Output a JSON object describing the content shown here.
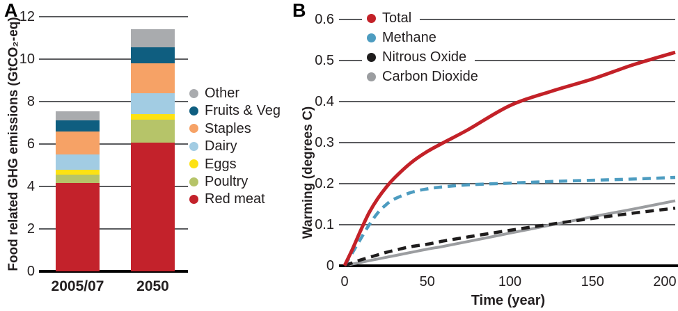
{
  "panels": {
    "a_label": "A",
    "b_label": "B"
  },
  "text_color": "#231f20",
  "grid_color": "#5a5b5e",
  "chart_data": [
    {
      "type": "bar",
      "panel": "A",
      "stacked": true,
      "ylabel": "Food related GHG emissions (GtCO₂-eq)",
      "categories": [
        "2005/07",
        "2050"
      ],
      "ylim": [
        0,
        12
      ],
      "yticks": [
        0,
        2,
        4,
        6,
        8,
        10,
        12
      ],
      "grid": true,
      "series": [
        {
          "name": "Red meat",
          "color": "#c3222b",
          "values": [
            4.15,
            6.05
          ]
        },
        {
          "name": "Poultry",
          "color": "#b6c469",
          "values": [
            0.4,
            1.1
          ]
        },
        {
          "name": "Eggs",
          "color": "#fde213",
          "values": [
            0.25,
            0.25
          ]
        },
        {
          "name": "Dairy",
          "color": "#a2cce3",
          "values": [
            0.7,
            1.0
          ]
        },
        {
          "name": "Staples",
          "color": "#f6a266",
          "values": [
            1.1,
            1.4
          ]
        },
        {
          "name": "Fruits & Veg",
          "color": "#0f5e80",
          "values": [
            0.5,
            0.75
          ]
        },
        {
          "name": "Other",
          "color": "#a9abae",
          "values": [
            0.45,
            0.85
          ]
        }
      ],
      "bar_totals": [
        7.55,
        11.4
      ],
      "legend_top_to_bottom": [
        "Other",
        "Fruits & Veg",
        "Staples",
        "Dairy",
        "Eggs",
        "Poultry",
        "Red meat"
      ],
      "legend_position": "right"
    },
    {
      "type": "line",
      "panel": "B",
      "xlabel": "Time (year)",
      "ylabel": "Warming (degrees C)",
      "xlim": [
        0,
        200
      ],
      "ylim": [
        0,
        0.6
      ],
      "xticks": [
        0,
        50,
        100,
        150,
        200
      ],
      "yticks": [
        0,
        0.1,
        0.2,
        0.3,
        0.4,
        0.5,
        0.6
      ],
      "grid": true,
      "legend_position": "top-left",
      "x": [
        0,
        5,
        10,
        15,
        20,
        25,
        30,
        40,
        50,
        60,
        75,
        100,
        125,
        150,
        175,
        200
      ],
      "series": [
        {
          "name": "Total",
          "color": "#c32128",
          "line_style": "solid",
          "values": [
            0,
            0.042,
            0.088,
            0.13,
            0.163,
            0.19,
            0.213,
            0.25,
            0.278,
            0.3,
            0.332,
            0.39,
            0.425,
            0.455,
            0.49,
            0.52
          ]
        },
        {
          "name": "Methane",
          "color": "#4d9cc0",
          "line_style": "dashed",
          "values": [
            0,
            0.033,
            0.067,
            0.1,
            0.128,
            0.148,
            0.162,
            0.178,
            0.187,
            0.192,
            0.197,
            0.201,
            0.205,
            0.208,
            0.211,
            0.215
          ]
        },
        {
          "name": "Nitrous Oxide",
          "color": "#1e1c1c",
          "line_style": "dashed",
          "values": [
            0,
            0.007,
            0.014,
            0.02,
            0.026,
            0.032,
            0.037,
            0.046,
            0.052,
            0.06,
            0.07,
            0.086,
            0.101,
            0.115,
            0.128,
            0.14
          ]
        },
        {
          "name": "Carbon Dioxide",
          "color": "#9b9da0",
          "line_style": "solid",
          "values": [
            0,
            0.004,
            0.008,
            0.012,
            0.016,
            0.02,
            0.024,
            0.032,
            0.04,
            0.047,
            0.059,
            0.079,
            0.099,
            0.119,
            0.138,
            0.158
          ]
        }
      ]
    }
  ]
}
